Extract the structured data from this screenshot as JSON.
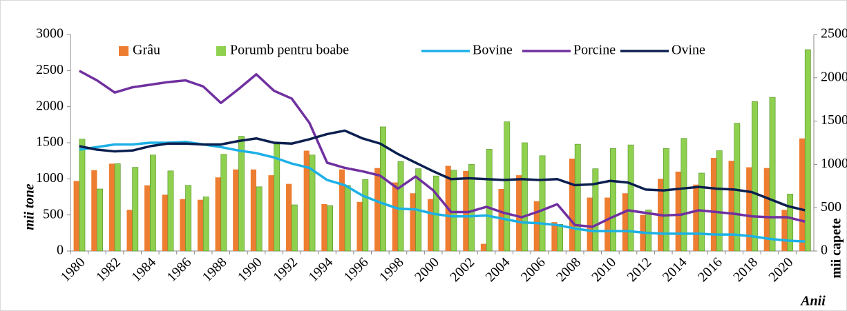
{
  "chart_data": {
    "type": "bar",
    "categories": [
      1980,
      null,
      1982,
      null,
      1984,
      null,
      1986,
      null,
      1988,
      null,
      1990,
      null,
      1992,
      null,
      1994,
      null,
      1996,
      null,
      1998,
      null,
      2000,
      null,
      2002,
      null,
      2004,
      null,
      2006,
      null,
      2008,
      null,
      2010,
      null,
      2012,
      null,
      2014,
      null,
      2016,
      null,
      2018,
      null,
      2020,
      null
    ],
    "ylabel": "mii tone",
    "y2label": "mii capete",
    "xlabel": "Anii",
    "ylim": [
      0,
      3000
    ],
    "yticks": [
      0,
      500,
      1000,
      1500,
      2000,
      2500,
      3000
    ],
    "y2lim": [
      0,
      2500
    ],
    "y2ticks": [
      0,
      500,
      1000,
      1500,
      2000,
      2500
    ],
    "grid": false,
    "series": [
      {
        "name": "Grâu",
        "type": "bar",
        "color": "#ed7d31",
        "values": [
          970,
          1120,
          1210,
          570,
          910,
          780,
          720,
          710,
          1020,
          1130,
          1130,
          1050,
          930,
          1390,
          650,
          1130,
          680,
          1150,
          950,
          800,
          720,
          1180,
          1110,
          100,
          860,
          1050,
          690,
          400,
          1280,
          740,
          740,
          800,
          500,
          1000,
          1100,
          920,
          1290,
          1250,
          1160,
          1150,
          570,
          1560
        ]
      },
      {
        "name": "Porumb pentru boabe",
        "type": "bar",
        "color": "#8fd14f",
        "values": [
          1550,
          860,
          1210,
          1160,
          1330,
          1110,
          910,
          750,
          1340,
          1590,
          890,
          1480,
          640,
          1330,
          630,
          910,
          990,
          1720,
          1240,
          1140,
          1040,
          1120,
          1200,
          1410,
          1790,
          1500,
          1320,
          370,
          1480,
          1140,
          1420,
          1470,
          570,
          1420,
          1560,
          1080,
          1390,
          1770,
          2070,
          2130,
          790,
          2790
        ]
      },
      {
        "name": "Bovine",
        "type": "line",
        "axis": "y2",
        "color": "#1cb0e6",
        "values": [
          1170,
          1200,
          1230,
          1230,
          1250,
          1250,
          1260,
          1230,
          1200,
          1160,
          1130,
          1080,
          1010,
          960,
          820,
          760,
          640,
          560,
          490,
          480,
          430,
          400,
          400,
          410,
          370,
          330,
          320,
          300,
          260,
          230,
          230,
          230,
          210,
          200,
          200,
          200,
          190,
          190,
          170,
          140,
          120,
          110
        ]
      },
      {
        "name": "Porcine",
        "type": "line",
        "axis": "y2",
        "color": "#7030a0",
        "values": [
          2080,
          1970,
          1830,
          1890,
          1920,
          1950,
          1970,
          1900,
          1710,
          1870,
          2040,
          1850,
          1760,
          1480,
          1020,
          960,
          920,
          870,
          720,
          860,
          700,
          450,
          450,
          510,
          440,
          390,
          460,
          540,
          300,
          280,
          380,
          470,
          440,
          410,
          420,
          470,
          450,
          430,
          400,
          390,
          390,
          340
        ]
      },
      {
        "name": "Ovine",
        "type": "line",
        "axis": "y2",
        "color": "#0b1f4f",
        "values": [
          1210,
          1170,
          1150,
          1160,
          1210,
          1240,
          1240,
          1230,
          1230,
          1270,
          1300,
          1250,
          1240,
          1290,
          1350,
          1390,
          1300,
          1240,
          1120,
          1020,
          920,
          830,
          840,
          830,
          820,
          830,
          820,
          830,
          760,
          770,
          810,
          790,
          710,
          700,
          720,
          740,
          720,
          710,
          680,
          600,
          520,
          470
        ]
      }
    ]
  }
}
